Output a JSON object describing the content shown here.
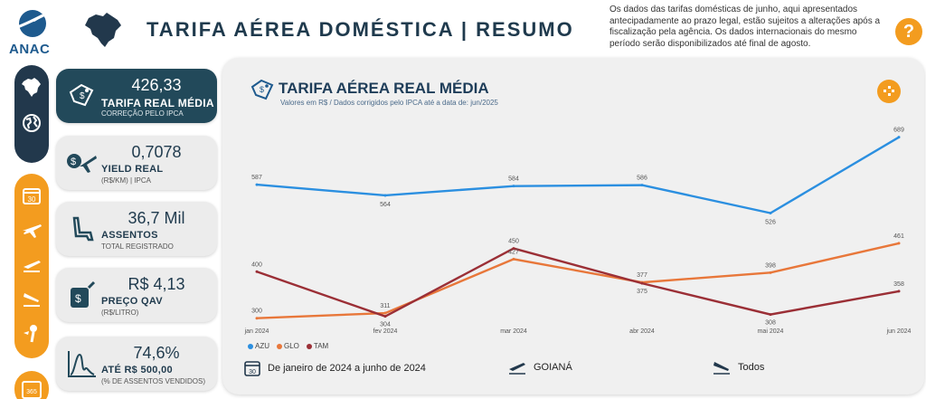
{
  "header": {
    "logo_text": "ANAC",
    "title": "TARIFA AÉREA DOMÉSTICA  |  RESUMO",
    "notice": "Os dados das tarifas domésticas de junho, aqui apresentados antecipadamente ao prazo legal, estão sujeitos a alterações após a fiscalização pela agência. Os dados internacionais do mesmo período serão disponibilizados até final de agosto.",
    "help_label": "?"
  },
  "nav": {
    "dark": [
      "brazil-map-icon",
      "globe-icon"
    ],
    "orange": [
      "calendar-30-icon",
      "airplane-icon",
      "takeoff-icon",
      "landing-icon",
      "route-icon"
    ],
    "orange2": [
      "calendar-365-icon"
    ],
    "calendar_30": "30",
    "calendar_365": "365"
  },
  "kpis": [
    {
      "value": "426,33",
      "label": "TARIFA REAL MÉDIA",
      "sub": "CORREÇÃO PELO IPCA",
      "icon": "price-tag-icon"
    },
    {
      "value": "0,7078",
      "label": "YIELD REAL",
      "sub": "(R$/KM) | IPCA",
      "icon": "yield-plane-icon"
    },
    {
      "value": "36,7 Mil",
      "label": "ASSENTOS",
      "sub": "TOTAL REGISTRADO",
      "icon": "seat-icon"
    },
    {
      "value": "R$ 4,13",
      "label": "PREÇO QAV",
      "sub": "(R$/LITRO)",
      "icon": "fuel-icon"
    },
    {
      "value": "74,6%",
      "label": "ATÉ R$ 500,00",
      "sub": "(% DE ASSENTOS VENDIDOS)",
      "icon": "distribution-icon"
    }
  ],
  "chart_data": {
    "type": "line",
    "title": "TARIFA AÉREA REAL MÉDIA",
    "subtitle": "Valores em R$ / Dados corrigidos pelo IPCA até a data de: jun/2025",
    "categories": [
      "jan 2024",
      "fev 2024",
      "mar 2024",
      "abr 2024",
      "mai 2024",
      "jun 2024"
    ],
    "series": [
      {
        "name": "AZU",
        "color": "#2b8fe0",
        "values": [
          587,
          564,
          584,
          586,
          526,
          689
        ]
      },
      {
        "name": "GLO",
        "color": "#e8773a",
        "values": [
          300,
          311,
          427,
          377,
          398,
          461
        ]
      },
      {
        "name": "TAM",
        "color": "#9b2f36",
        "values": [
          400,
          304,
          450,
          375,
          308,
          358
        ]
      }
    ],
    "grid": false,
    "legend": "bottom-left"
  },
  "filters": {
    "period": "De janeiro de 2024 a junho de 2024",
    "period_day": "30",
    "origin": "GOIANÁ",
    "destination": "Todos"
  }
}
